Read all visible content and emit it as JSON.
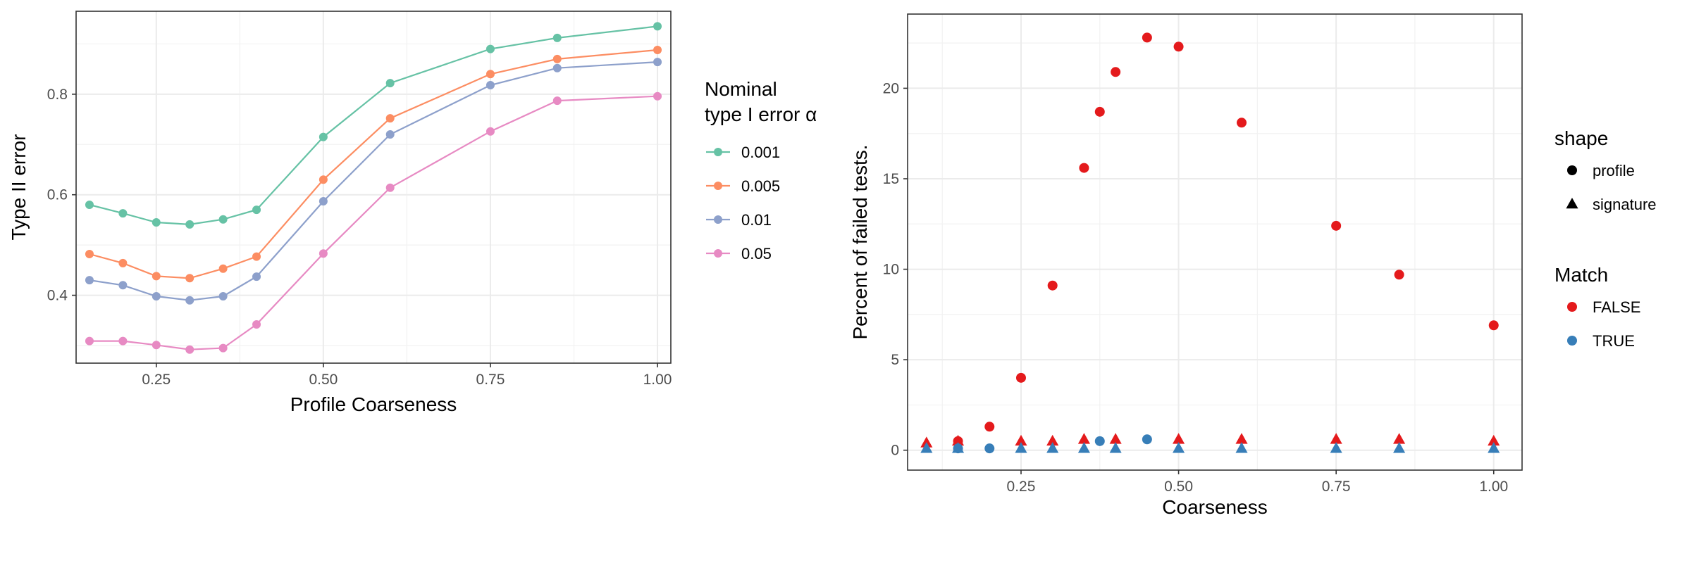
{
  "chart_data": [
    {
      "type": "line",
      "xlabel": "Profile Coarseness",
      "ylabel": "Type II error",
      "xlim": [
        0.13,
        1.02
      ],
      "ylim": [
        0.265,
        0.965
      ],
      "xticks": [
        0.25,
        0.5,
        0.75,
        1.0
      ],
      "xtick_labels": [
        "0.25",
        "0.50",
        "0.75",
        "1.00"
      ],
      "yticks": [
        0.4,
        0.6,
        0.8
      ],
      "ytick_labels": [
        "0.4",
        "0.6",
        "0.8"
      ],
      "grid": true,
      "legend_title": [
        "Nominal",
        "type I error α"
      ],
      "legend_position": "right",
      "x": [
        0.15,
        0.2,
        0.25,
        0.3,
        0.35,
        0.4,
        0.5,
        0.6,
        0.75,
        0.85,
        1.0
      ],
      "series": [
        {
          "name": "0.001",
          "color": "#66c2a5",
          "values": [
            0.58,
            0.563,
            0.545,
            0.541,
            0.551,
            0.57,
            0.715,
            0.822,
            0.89,
            0.912,
            0.935
          ]
        },
        {
          "name": "0.005",
          "color": "#fc8d62",
          "values": [
            0.482,
            0.464,
            0.438,
            0.434,
            0.453,
            0.477,
            0.63,
            0.752,
            0.84,
            0.87,
            0.888
          ]
        },
        {
          "name": "0.01",
          "color": "#8da0cb",
          "values": [
            0.43,
            0.42,
            0.398,
            0.39,
            0.398,
            0.437,
            0.587,
            0.72,
            0.818,
            0.852,
            0.864
          ]
        },
        {
          "name": "0.05",
          "color": "#e78ac3",
          "values": [
            0.309,
            0.309,
            0.301,
            0.292,
            0.295,
            0.342,
            0.483,
            0.614,
            0.726,
            0.787,
            0.796
          ]
        }
      ]
    },
    {
      "type": "scatter",
      "xlabel": "Coarseness",
      "ylabel": "Percent of failed tests.",
      "xlim": [
        0.07,
        1.045
      ],
      "ylim": [
        -1.1,
        24.1
      ],
      "xticks": [
        0.25,
        0.5,
        0.75,
        1.0
      ],
      "xtick_labels": [
        "0.25",
        "0.50",
        "0.75",
        "1.00"
      ],
      "yticks": [
        0,
        5,
        10,
        15,
        20
      ],
      "ytick_labels": [
        "0",
        "5",
        "10",
        "15",
        "20"
      ],
      "grid": true,
      "legend_position": "right",
      "legend_shape": {
        "title": "shape",
        "items": [
          {
            "label": "profile",
            "symbol": "circle"
          },
          {
            "label": "signature",
            "symbol": "triangle"
          }
        ]
      },
      "legend_match": {
        "title": "Match",
        "items": [
          {
            "label": "FALSE",
            "color": "#e41a1c"
          },
          {
            "label": "TRUE",
            "color": "#377eb8"
          }
        ]
      },
      "series": [
        {
          "name": "profile FALSE",
          "shape": "circle",
          "color": "#e41a1c",
          "x": [
            0.15,
            0.2,
            0.25,
            0.3,
            0.35,
            0.375,
            0.4,
            0.45,
            0.5,
            0.6,
            0.75,
            0.85,
            1.0
          ],
          "y": [
            0.5,
            1.3,
            4.0,
            9.1,
            15.6,
            18.7,
            20.9,
            22.8,
            22.3,
            18.1,
            12.4,
            9.7,
            6.9
          ]
        },
        {
          "name": "signature FALSE",
          "shape": "triangle",
          "color": "#e41a1c",
          "x": [
            0.1,
            0.15,
            0.25,
            0.3,
            0.35,
            0.4,
            0.5,
            0.6,
            0.75,
            0.85,
            1.0
          ],
          "y": [
            0.4,
            0.5,
            0.5,
            0.5,
            0.6,
            0.6,
            0.6,
            0.6,
            0.6,
            0.6,
            0.5
          ]
        },
        {
          "name": "profile TRUE",
          "shape": "circle",
          "color": "#377eb8",
          "x": [
            0.15,
            0.2,
            0.375,
            0.45
          ],
          "y": [
            0.1,
            0.1,
            0.5,
            0.6
          ]
        },
        {
          "name": "signature TRUE",
          "shape": "triangle",
          "color": "#377eb8",
          "x": [
            0.1,
            0.15,
            0.25,
            0.3,
            0.35,
            0.4,
            0.5,
            0.6,
            0.75,
            0.85,
            1.0
          ],
          "y": [
            0.1,
            0.1,
            0.1,
            0.1,
            0.1,
            0.1,
            0.1,
            0.1,
            0.1,
            0.1,
            0.1
          ]
        }
      ]
    }
  ]
}
